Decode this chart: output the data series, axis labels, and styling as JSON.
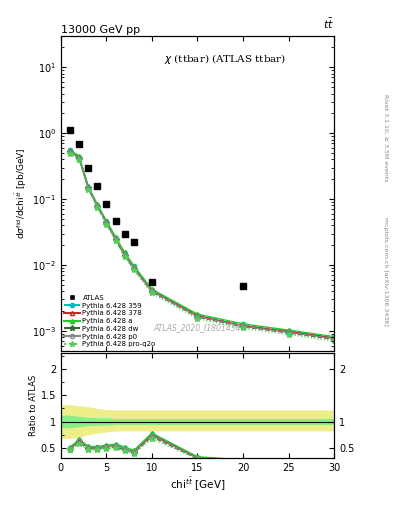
{
  "title_top": "13000 GeV pp",
  "title_top_right": "tt̅",
  "plot_title": "χ (ttbar) (ATLAS ttbar)",
  "ylabel_main": "dσ^{fid}/dchi^{tbart} [pb/GeV]",
  "ylabel_ratio": "Ratio to ATLAS",
  "xlabel": "chi^{tbar{t}} [GeV]",
  "watermark": "ATLAS_2020_I1801434",
  "right_label": "Rivet 3.1.10, ≥ 3.5M events",
  "right_label2": "mcplots.cern.ch [arXiv:1306.3436]",
  "ylim_main": [
    0.0005,
    30
  ],
  "ylim_ratio": [
    0.3,
    2.3
  ],
  "xlim": [
    0,
    30
  ],
  "atlas_x": [
    1,
    2,
    3,
    4,
    5,
    6,
    7,
    8,
    10,
    20
  ],
  "atlas_y": [
    1.1,
    0.68,
    0.3,
    0.16,
    0.085,
    0.047,
    0.03,
    0.022,
    0.0055,
    0.0048
  ],
  "pythia_x": [
    1,
    2,
    3,
    4,
    5,
    6,
    7,
    8,
    10,
    15,
    20,
    25,
    30
  ],
  "py6_359_y": [
    0.55,
    0.44,
    0.155,
    0.082,
    0.046,
    0.026,
    0.015,
    0.0095,
    0.0042,
    0.00175,
    0.00125,
    0.001,
    0.0008
  ],
  "py6_378_y": [
    0.54,
    0.43,
    0.152,
    0.08,
    0.045,
    0.025,
    0.0145,
    0.0092,
    0.0041,
    0.0017,
    0.0012,
    0.00098,
    0.00078
  ],
  "py6_a_y": [
    0.56,
    0.45,
    0.158,
    0.083,
    0.047,
    0.027,
    0.0155,
    0.0098,
    0.0043,
    0.0018,
    0.00128,
    0.00103,
    0.00082
  ],
  "py6_dw_y": [
    0.51,
    0.41,
    0.145,
    0.077,
    0.043,
    0.024,
    0.0138,
    0.0088,
    0.0039,
    0.00162,
    0.00115,
    0.00093,
    0.00074
  ],
  "py6_p0_y": [
    0.52,
    0.42,
    0.149,
    0.079,
    0.044,
    0.025,
    0.0143,
    0.009,
    0.004,
    0.00165,
    0.00117,
    0.00095,
    0.00076
  ],
  "py6_proq2o_y": [
    0.49,
    0.39,
    0.138,
    0.073,
    0.041,
    0.023,
    0.0133,
    0.0084,
    0.0037,
    0.00153,
    0.00109,
    0.00088,
    0.0007
  ],
  "band_x": [
    0,
    1,
    2,
    3,
    4,
    5,
    6,
    7,
    8,
    10,
    15,
    20,
    25,
    30
  ],
  "band_green_lo": [
    0.88,
    0.88,
    0.9,
    0.92,
    0.93,
    0.93,
    0.94,
    0.94,
    0.94,
    0.94,
    0.94,
    0.94,
    0.94,
    0.94
  ],
  "band_green_hi": [
    1.12,
    1.12,
    1.1,
    1.08,
    1.07,
    1.07,
    1.06,
    1.06,
    1.06,
    1.06,
    1.06,
    1.06,
    1.06,
    1.06
  ],
  "band_yellow_lo": [
    0.68,
    0.68,
    0.7,
    0.75,
    0.78,
    0.8,
    0.82,
    0.82,
    0.82,
    0.82,
    0.82,
    0.82,
    0.82,
    0.82
  ],
  "band_yellow_hi": [
    1.32,
    1.32,
    1.3,
    1.28,
    1.25,
    1.23,
    1.22,
    1.22,
    1.22,
    1.22,
    1.22,
    1.22,
    1.22,
    1.22
  ],
  "ratio_py6_359": [
    0.5,
    0.65,
    0.52,
    0.51,
    0.54,
    0.55,
    0.5,
    0.43,
    0.77,
    0.32,
    0.26,
    0.2,
    0.16
  ],
  "ratio_py6_378": [
    0.49,
    0.63,
    0.51,
    0.5,
    0.53,
    0.53,
    0.48,
    0.42,
    0.75,
    0.31,
    0.25,
    0.2,
    0.16
  ],
  "ratio_py6_a": [
    0.51,
    0.66,
    0.53,
    0.52,
    0.55,
    0.57,
    0.52,
    0.45,
    0.78,
    0.33,
    0.27,
    0.21,
    0.17
  ],
  "ratio_py6_dw": [
    0.46,
    0.6,
    0.48,
    0.48,
    0.51,
    0.51,
    0.46,
    0.4,
    0.71,
    0.29,
    0.24,
    0.19,
    0.15
  ],
  "ratio_py6_p0": [
    0.47,
    0.62,
    0.5,
    0.49,
    0.52,
    0.53,
    0.48,
    0.41,
    0.73,
    0.3,
    0.24,
    0.19,
    0.15
  ],
  "ratio_py6_proq2o": [
    0.45,
    0.57,
    0.46,
    0.46,
    0.48,
    0.49,
    0.44,
    0.38,
    0.67,
    0.28,
    0.23,
    0.18,
    0.14
  ],
  "color_py6_359": "#00bbbb",
  "color_py6_378": "#cc2222",
  "color_py6_a": "#22cc22",
  "color_py6_dw": "#336633",
  "color_py6_p0": "#888888",
  "color_py6_proq2o": "#55cc55",
  "legend_labels": [
    "ATLAS",
    "Pythia 6.428 359",
    "Pythia 6.428 378",
    "Pythia 6.428 a",
    "Pythia 6.428 dw",
    "Pythia 6.428 p0",
    "Pythia 6.428 pro-q2o"
  ]
}
